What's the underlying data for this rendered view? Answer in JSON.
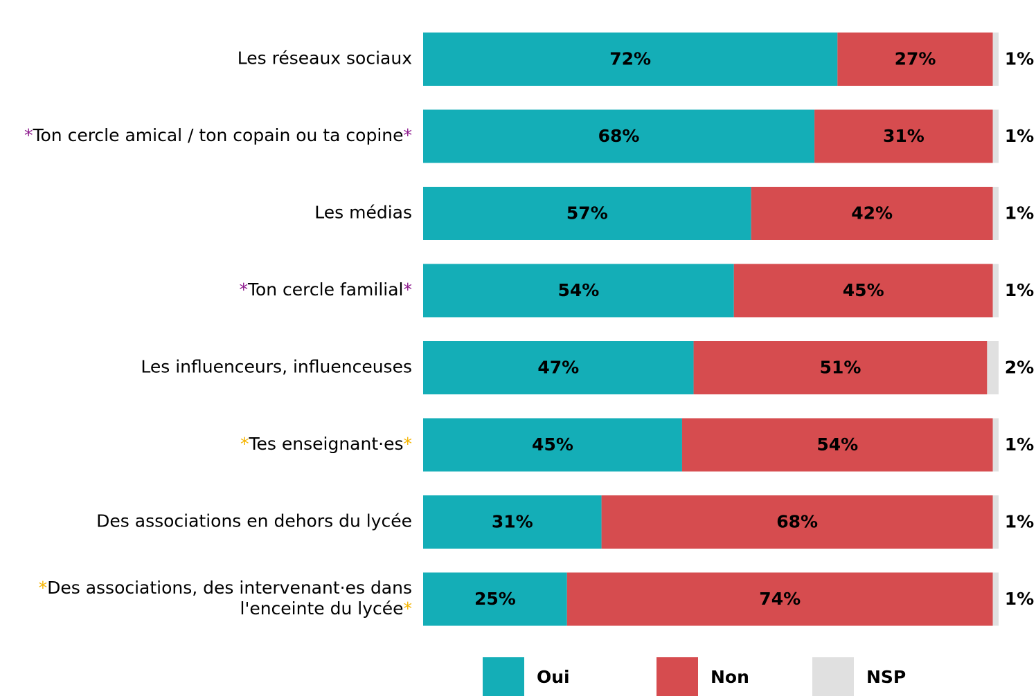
{
  "chart_data": {
    "type": "stacked-bar-horizontal",
    "categories": [
      "Les réseaux sociaux",
      "*Ton cercle amical / ton copain ou ta copine*",
      "Les médias",
      "*Ton cercle familial*",
      "Les influenceurs, influenceuses",
      "*Tes enseignant·es*",
      "Des associations en dehors du lycée",
      "*Des associations, des intervenant·es dans l'enceinte du lycée*"
    ],
    "category_marker_colors": [
      null,
      "#8e1b8e",
      null,
      "#8e1b8e",
      null,
      "#f5b400",
      null,
      "#f5b400"
    ],
    "xlim": [
      0,
      100
    ],
    "series": [
      {
        "name": "Oui",
        "color": "#14aeb7",
        "values": [
          72,
          68,
          57,
          54,
          47,
          45,
          31,
          25
        ],
        "value_labels": [
          "72%",
          "68%",
          "57%",
          "54%",
          "47%",
          "45%",
          "31%",
          "25%"
        ]
      },
      {
        "name": "Non",
        "color": "#d64c4f",
        "values": [
          27,
          31,
          42,
          45,
          51,
          54,
          68,
          74
        ],
        "value_labels": [
          "27%",
          "31%",
          "42%",
          "45%",
          "51%",
          "54%",
          "68%",
          "74%"
        ]
      },
      {
        "name": "NSP",
        "color": "#e0e0e0",
        "values": [
          1,
          1,
          1,
          1,
          2,
          1,
          1,
          1
        ],
        "value_labels": [
          "1%",
          "1%",
          "1%",
          "1%",
          "2%",
          "1%",
          "1%",
          "1%"
        ]
      }
    ]
  }
}
